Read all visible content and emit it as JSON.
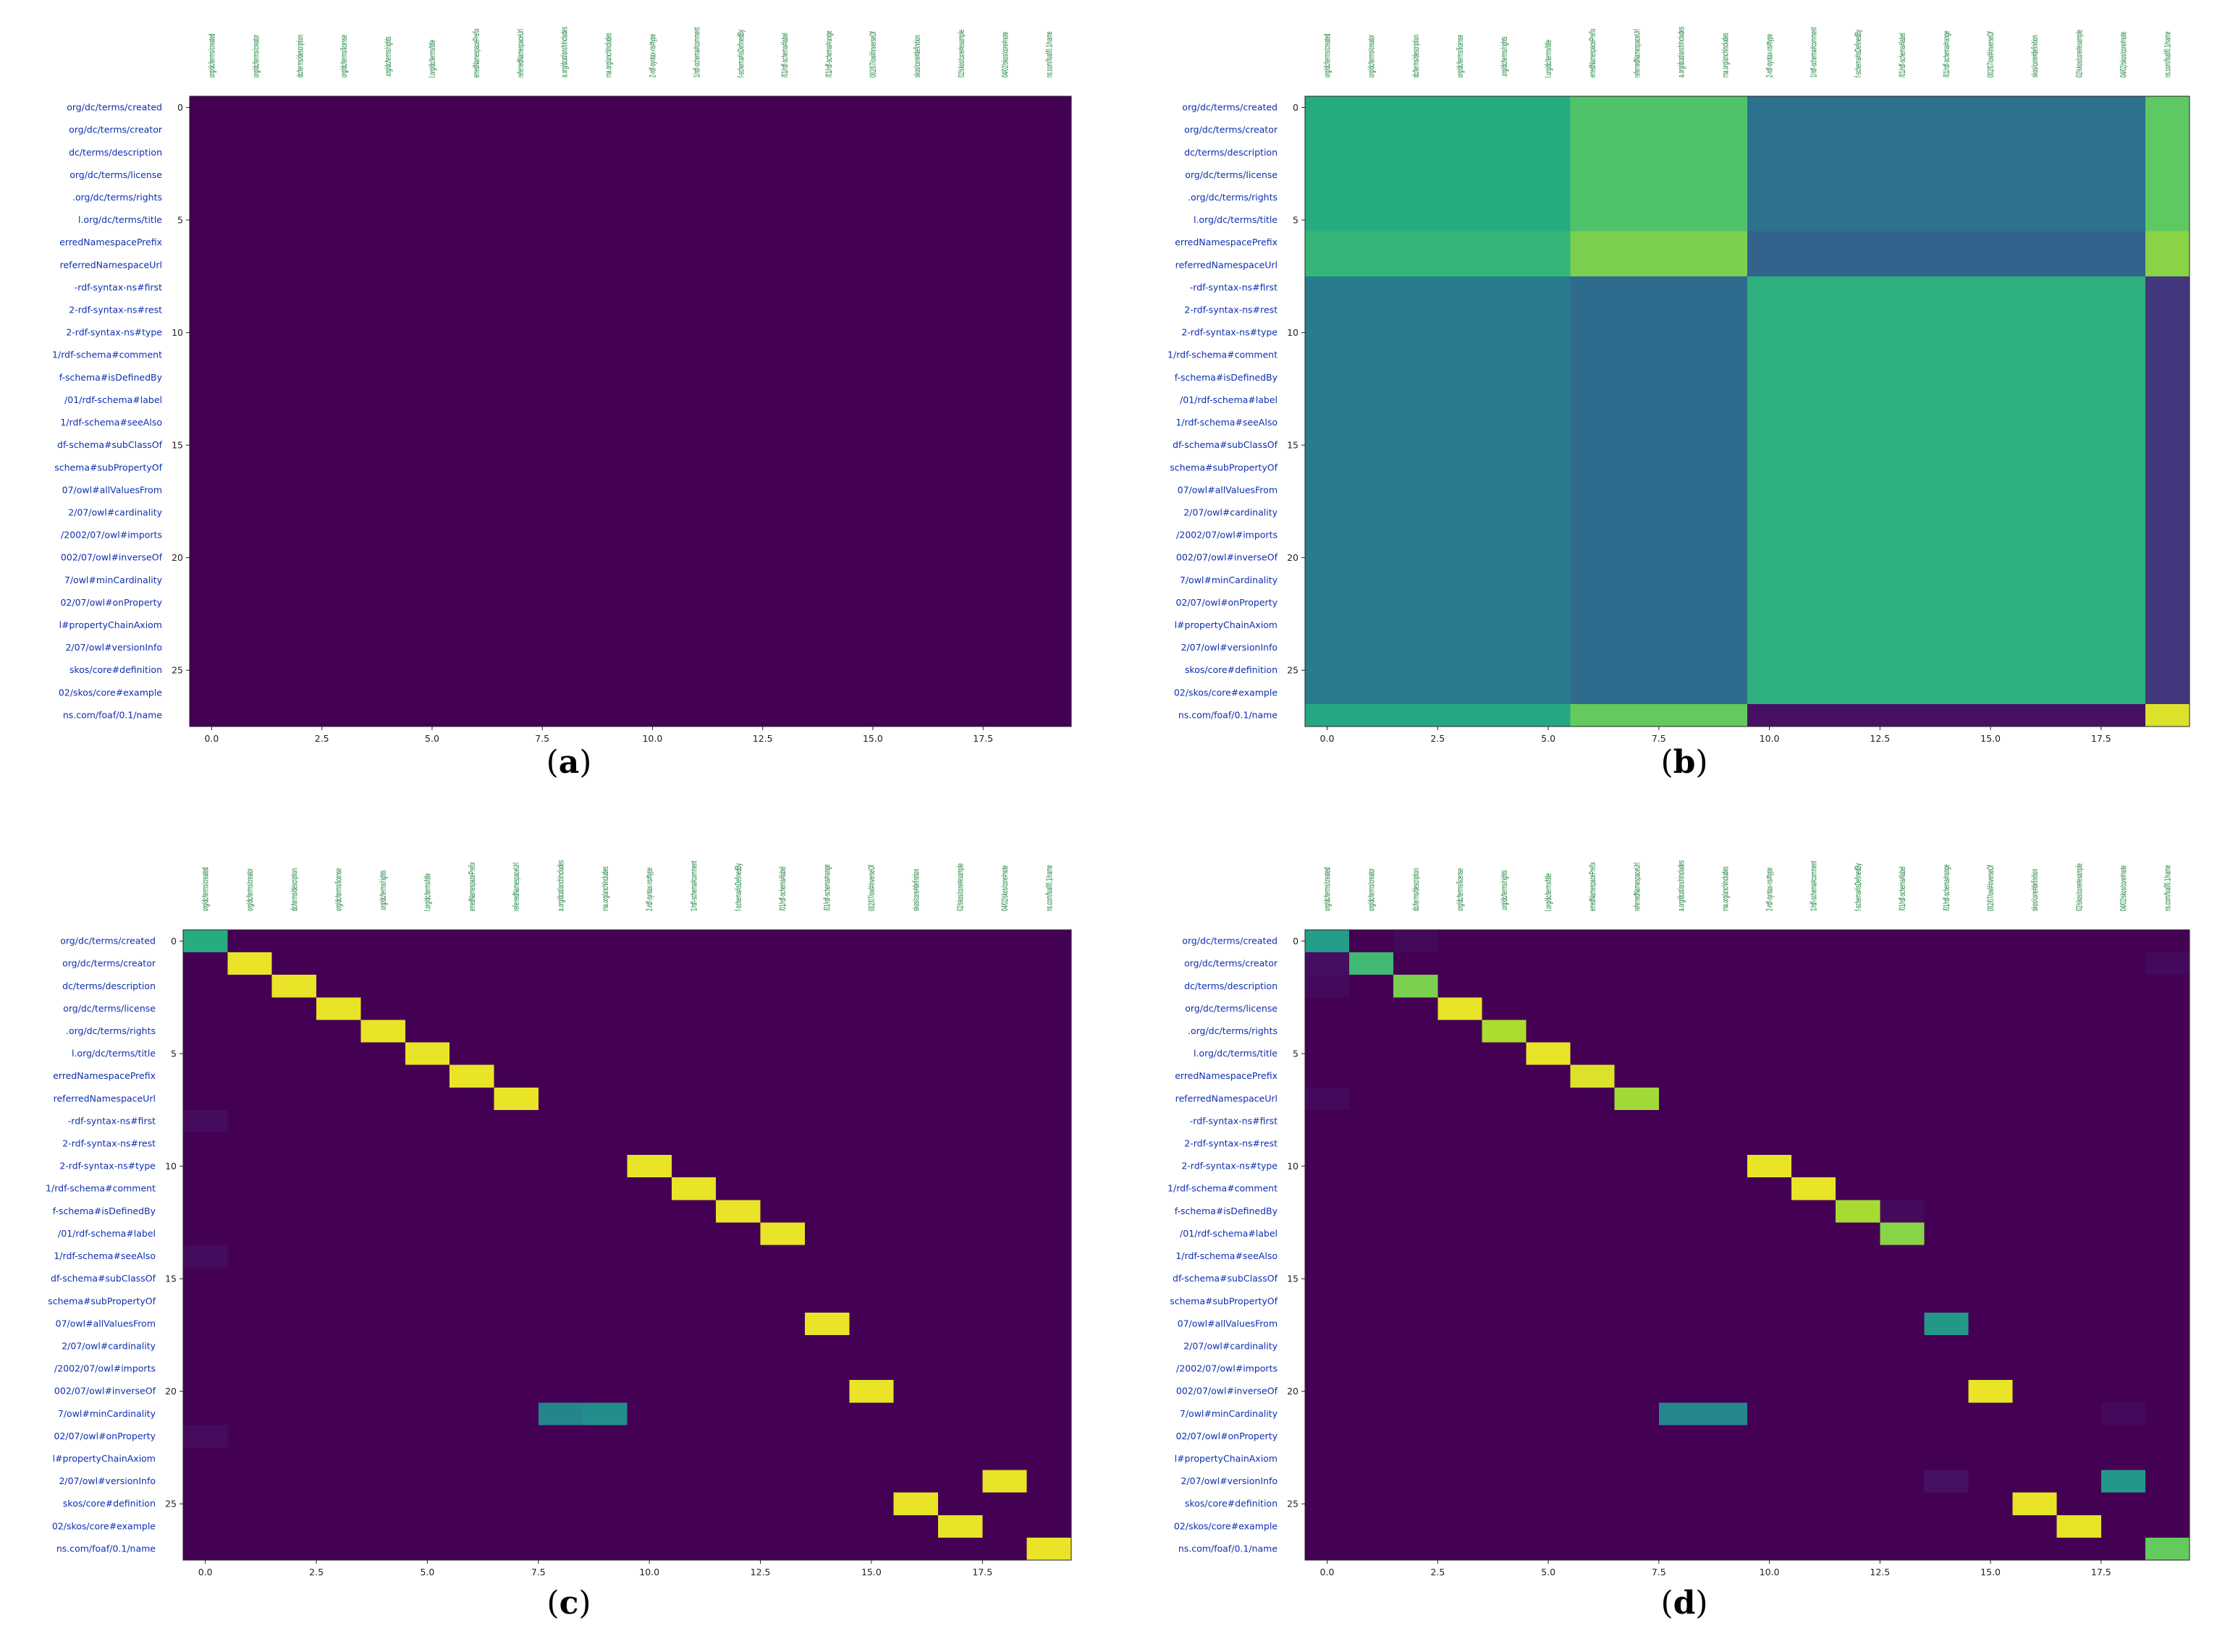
{
  "figure_caption_format": "({letter})",
  "chart_data": [
    {
      "type": "heatmap",
      "panel_label": "a",
      "title": "",
      "colormap": "viridis",
      "ylabels": [
        "org/dc/terms/created",
        "org/dc/terms/creator",
        "dc/terms/description",
        "org/dc/terms/license",
        ".org/dc/terms/rights",
        "l.org/dc/terms/title",
        "erredNamespacePrefix",
        "referredNamespaceUrl",
        "-rdf-syntax-ns#first",
        "2-rdf-syntax-ns#rest",
        "2-rdf-syntax-ns#type",
        "1/rdf-schema#comment",
        "f-schema#isDefinedBy",
        "/01/rdf-schema#label",
        "1/rdf-schema#seeAlso",
        "df-schema#subClassOf",
        "schema#subPropertyOf",
        "07/owl#allValuesFrom",
        "2/07/owl#cardinality",
        "/2002/07/owl#imports",
        "002/07/owl#inverseOf",
        "7/owl#minCardinality",
        "02/07/owl#onProperty",
        "l#propertyChainAxiom",
        "2/07/owl#versionInfo",
        "skos/core#definition",
        "02/skos/core#example",
        "ns.com/foaf/0.1/name"
      ],
      "xlabels": [
        "org/dc/terms/created",
        "org/dc/terms/creator",
        "dc/terms/description",
        "org/dc/terms/license",
        ".org/dc/terms/rights",
        "l.org/dc/terms/title",
        "erredNamespacePrefix",
        "referredNamespaceUrl",
        "a.org/dcat/anchIncludes",
        "rna.org/anchIncludes",
        "2-rdf-syntax-ns#type",
        "1/rdf-schema#comment",
        "f-schema#isDefinedBy",
        "/01/rdf-schema#label",
        "/01/rdf-schema#range",
        "002/07/owl#inverseOf",
        "skos/core#definition",
        "02/skos/core#example",
        "04/02/skos/core#note",
        "ns.com/foaf/0.1/name"
      ],
      "x_ticks": [
        0,
        2.5,
        5,
        7.5,
        10,
        12.5,
        15,
        17.5
      ],
      "x_tick_labels": [
        "0.0",
        "2.5",
        "5.0",
        "7.5",
        "10.0",
        "12.5",
        "15.0",
        "17.5"
      ],
      "y_ticks": [
        0,
        5,
        10,
        15,
        20,
        25
      ],
      "y_tick_labels": [
        "0",
        "5",
        "10",
        "15",
        "20",
        "25"
      ],
      "value_range": [
        0,
        1
      ],
      "pattern": "uniform",
      "uniform_value": 0.0
    },
    {
      "type": "heatmap",
      "panel_label": "b",
      "title": "",
      "colormap": "viridis",
      "ylabels": [
        "org/dc/terms/created",
        "org/dc/terms/creator",
        "dc/terms/description",
        "org/dc/terms/license",
        ".org/dc/terms/rights",
        "l.org/dc/terms/title",
        "erredNamespacePrefix",
        "referredNamespaceUrl",
        "-rdf-syntax-ns#first",
        "2-rdf-syntax-ns#rest",
        "2-rdf-syntax-ns#type",
        "1/rdf-schema#comment",
        "f-schema#isDefinedBy",
        "/01/rdf-schema#label",
        "1/rdf-schema#seeAlso",
        "df-schema#subClassOf",
        "schema#subPropertyOf",
        "07/owl#allValuesFrom",
        "2/07/owl#cardinality",
        "/2002/07/owl#imports",
        "002/07/owl#inverseOf",
        "7/owl#minCardinality",
        "02/07/owl#onProperty",
        "l#propertyChainAxiom",
        "2/07/owl#versionInfo",
        "skos/core#definition",
        "02/skos/core#example",
        "ns.com/foaf/0.1/name"
      ],
      "xlabels": [
        "org/dc/terms/created",
        "org/dc/terms/creator",
        "dc/terms/description",
        "org/dc/terms/license",
        ".org/dc/terms/rights",
        "l.org/dc/terms/title",
        "erredNamespacePrefix",
        "referredNamespaceUrl",
        "a.org/dcat/anchIncludes",
        "rna.org/anchIncludes",
        "2-rdf-syntax-ns#type",
        "1/rdf-schema#comment",
        "f-schema#isDefinedBy",
        "/01/rdf-schema#label",
        "/01/rdf-schema#range",
        "002/07/owl#inverseOf",
        "skos/core#definition",
        "02/skos/core#example",
        "04/02/skos/core#note",
        "ns.com/foaf/0.1/name"
      ],
      "x_ticks": [
        0,
        2.5,
        5,
        7.5,
        10,
        12.5,
        15,
        17.5
      ],
      "x_tick_labels": [
        "0.0",
        "2.5",
        "5.0",
        "7.5",
        "10.0",
        "12.5",
        "15.0",
        "17.5"
      ],
      "y_ticks": [
        0,
        5,
        10,
        15,
        20,
        25
      ],
      "y_tick_labels": [
        "0",
        "5",
        "10",
        "15",
        "20",
        "25"
      ],
      "value_range": [
        0,
        1
      ],
      "pattern": "block",
      "row_groups": [
        [
          0,
          5
        ],
        [
          6,
          7
        ],
        [
          8,
          26
        ],
        [
          27,
          27
        ]
      ],
      "col_groups": [
        [
          0,
          5
        ],
        [
          6,
          9
        ],
        [
          10,
          18
        ],
        [
          19,
          19
        ]
      ],
      "block_values": [
        [
          0.62,
          0.72,
          0.38,
          0.75
        ],
        [
          0.66,
          0.8,
          0.32,
          0.82
        ],
        [
          0.42,
          0.35,
          0.64,
          0.18
        ],
        [
          0.6,
          0.76,
          0.06,
          0.95
        ]
      ]
    },
    {
      "type": "heatmap",
      "panel_label": "c",
      "title": "",
      "colormap": "viridis",
      "ylabels": [
        "org/dc/terms/created",
        "org/dc/terms/creator",
        "dc/terms/description",
        "org/dc/terms/license",
        ".org/dc/terms/rights",
        "l.org/dc/terms/title",
        "erredNamespacePrefix",
        "referredNamespaceUrl",
        "-rdf-syntax-ns#first",
        "2-rdf-syntax-ns#rest",
        "2-rdf-syntax-ns#type",
        "1/rdf-schema#comment",
        "f-schema#isDefinedBy",
        "/01/rdf-schema#label",
        "1/rdf-schema#seeAlso",
        "df-schema#subClassOf",
        "schema#subPropertyOf",
        "07/owl#allValuesFrom",
        "2/07/owl#cardinality",
        "/2002/07/owl#imports",
        "002/07/owl#inverseOf",
        "7/owl#minCardinality",
        "02/07/owl#onProperty",
        "l#propertyChainAxiom",
        "2/07/owl#versionInfo",
        "skos/core#definition",
        "02/skos/core#example",
        "ns.com/foaf/0.1/name"
      ],
      "xlabels": [
        "org/dc/terms/created",
        "org/dc/terms/creator",
        "dc/terms/description",
        "org/dc/terms/license",
        ".org/dc/terms/rights",
        "l.org/dc/terms/title",
        "erredNamespacePrefix",
        "referredNamespaceUrl",
        "a.org/dcat/anchIncludes",
        "rna.org/anchIncludes",
        "2-rdf-syntax-ns#type",
        "1/rdf-schema#comment",
        "f-schema#isDefinedBy",
        "/01/rdf-schema#label",
        "/01/rdf-schema#range",
        "002/07/owl#inverseOf",
        "skos/core#definition",
        "02/skos/core#example",
        "04/02/skos/core#note",
        "ns.com/foaf/0.1/name"
      ],
      "x_ticks": [
        0,
        2.5,
        5,
        7.5,
        10,
        12.5,
        15,
        17.5
      ],
      "x_tick_labels": [
        "0.0",
        "2.5",
        "5.0",
        "7.5",
        "10.0",
        "12.5",
        "15.0",
        "17.5"
      ],
      "y_ticks": [
        0,
        5,
        10,
        15,
        20,
        25
      ],
      "y_tick_labels": [
        "0",
        "5",
        "10",
        "15",
        "20",
        "25"
      ],
      "value_range": [
        0,
        1
      ],
      "pattern": "sparse",
      "background": 0.0,
      "cells": [
        {
          "row": 0,
          "col": 0,
          "value": 0.62
        },
        {
          "row": 1,
          "col": 1,
          "value": 0.97
        },
        {
          "row": 2,
          "col": 2,
          "value": 0.97
        },
        {
          "row": 3,
          "col": 3,
          "value": 0.97
        },
        {
          "row": 4,
          "col": 4,
          "value": 0.97
        },
        {
          "row": 5,
          "col": 5,
          "value": 0.97
        },
        {
          "row": 6,
          "col": 6,
          "value": 0.97
        },
        {
          "row": 7,
          "col": 7,
          "value": 0.97
        },
        {
          "row": 10,
          "col": 10,
          "value": 0.97
        },
        {
          "row": 11,
          "col": 11,
          "value": 0.97
        },
        {
          "row": 12,
          "col": 12,
          "value": 0.97
        },
        {
          "row": 13,
          "col": 13,
          "value": 0.97
        },
        {
          "row": 17,
          "col": 14,
          "value": 0.97
        },
        {
          "row": 20,
          "col": 15,
          "value": 0.97
        },
        {
          "row": 21,
          "col": 8,
          "value": 0.45
        },
        {
          "row": 21,
          "col": 9,
          "value": 0.48
        },
        {
          "row": 24,
          "col": 18,
          "value": 0.97
        },
        {
          "row": 25,
          "col": 16,
          "value": 0.97
        },
        {
          "row": 26,
          "col": 17,
          "value": 0.97
        },
        {
          "row": 27,
          "col": 19,
          "value": 0.97
        },
        {
          "row": 8,
          "col": 0,
          "value": 0.04
        },
        {
          "row": 14,
          "col": 0,
          "value": 0.04
        },
        {
          "row": 22,
          "col": 0,
          "value": 0.04
        }
      ]
    },
    {
      "type": "heatmap",
      "panel_label": "d",
      "title": "",
      "colormap": "viridis",
      "ylabels": [
        "org/dc/terms/created",
        "org/dc/terms/creator",
        "dc/terms/description",
        "org/dc/terms/license",
        ".org/dc/terms/rights",
        "l.org/dc/terms/title",
        "erredNamespacePrefix",
        "referredNamespaceUrl",
        "-rdf-syntax-ns#first",
        "2-rdf-syntax-ns#rest",
        "2-rdf-syntax-ns#type",
        "1/rdf-schema#comment",
        "f-schema#isDefinedBy",
        "/01/rdf-schema#label",
        "1/rdf-schema#seeAlso",
        "df-schema#subClassOf",
        "schema#subPropertyOf",
        "07/owl#allValuesFrom",
        "2/07/owl#cardinality",
        "/2002/07/owl#imports",
        "002/07/owl#inverseOf",
        "7/owl#minCardinality",
        "02/07/owl#onProperty",
        "l#propertyChainAxiom",
        "2/07/owl#versionInfo",
        "skos/core#definition",
        "02/skos/core#example",
        "ns.com/foaf/0.1/name"
      ],
      "xlabels": [
        "org/dc/terms/created",
        "org/dc/terms/creator",
        "dc/terms/description",
        "org/dc/terms/license",
        ".org/dc/terms/rights",
        "l.org/dc/terms/title",
        "erredNamespacePrefix",
        "referredNamespaceUrl",
        "a.org/dcat/anchIncludes",
        "rna.org/anchIncludes",
        "2-rdf-syntax-ns#type",
        "1/rdf-schema#comment",
        "f-schema#isDefinedBy",
        "/01/rdf-schema#label",
        "/01/rdf-schema#range",
        "002/07/owl#inverseOf",
        "skos/core#definition",
        "02/skos/core#example",
        "04/02/skos/core#note",
        "ns.com/foaf/0.1/name"
      ],
      "x_ticks": [
        0,
        2.5,
        5,
        7.5,
        10,
        12.5,
        15,
        17.5
      ],
      "x_tick_labels": [
        "0.0",
        "2.5",
        "5.0",
        "7.5",
        "10.0",
        "12.5",
        "15.0",
        "17.5"
      ],
      "y_ticks": [
        0,
        5,
        10,
        15,
        20,
        25
      ],
      "y_tick_labels": [
        "0",
        "5",
        "10",
        "15",
        "20",
        "25"
      ],
      "value_range": [
        0,
        1
      ],
      "pattern": "sparse",
      "background": 0.0,
      "cells": [
        {
          "row": 0,
          "col": 0,
          "value": 0.55
        },
        {
          "row": 1,
          "col": 1,
          "value": 0.68
        },
        {
          "row": 2,
          "col": 2,
          "value": 0.8
        },
        {
          "row": 3,
          "col": 3,
          "value": 0.97
        },
        {
          "row": 4,
          "col": 4,
          "value": 0.88
        },
        {
          "row": 5,
          "col": 5,
          "value": 0.97
        },
        {
          "row": 6,
          "col": 6,
          "value": 0.95
        },
        {
          "row": 7,
          "col": 7,
          "value": 0.86
        },
        {
          "row": 10,
          "col": 10,
          "value": 0.97
        },
        {
          "row": 11,
          "col": 11,
          "value": 0.97
        },
        {
          "row": 12,
          "col": 12,
          "value": 0.87
        },
        {
          "row": 13,
          "col": 13,
          "value": 0.82
        },
        {
          "row": 17,
          "col": 14,
          "value": 0.53
        },
        {
          "row": 20,
          "col": 15,
          "value": 0.97
        },
        {
          "row": 21,
          "col": 8,
          "value": 0.46
        },
        {
          "row": 21,
          "col": 9,
          "value": 0.46
        },
        {
          "row": 24,
          "col": 18,
          "value": 0.53
        },
        {
          "row": 24,
          "col": 14,
          "value": 0.06
        },
        {
          "row": 25,
          "col": 16,
          "value": 0.97
        },
        {
          "row": 26,
          "col": 17,
          "value": 0.97
        },
        {
          "row": 27,
          "col": 19,
          "value": 0.76
        },
        {
          "row": 1,
          "col": 0,
          "value": 0.05
        },
        {
          "row": 2,
          "col": 0,
          "value": 0.03
        },
        {
          "row": 0,
          "col": 2,
          "value": 0.03
        },
        {
          "row": 7,
          "col": 0,
          "value": 0.03
        },
        {
          "row": 12,
          "col": 13,
          "value": 0.03
        },
        {
          "row": 21,
          "col": 18,
          "value": 0.03
        },
        {
          "row": 1,
          "col": 19,
          "value": 0.03
        }
      ]
    }
  ]
}
